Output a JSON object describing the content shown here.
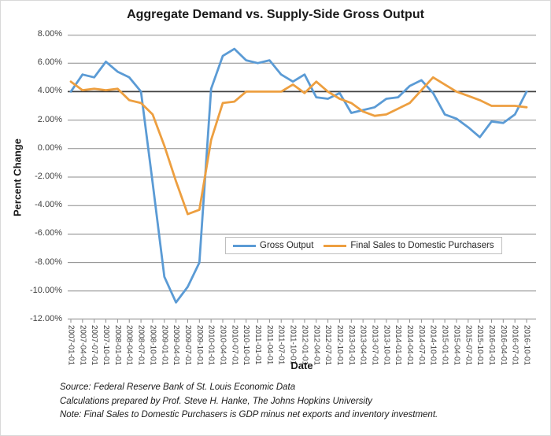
{
  "chart_data": {
    "type": "line",
    "title": "Aggregate Demand vs. Supply-Side Gross Output",
    "xlabel": "Date",
    "ylabel": "Percent Change",
    "ylim": [
      -12,
      8
    ],
    "ytick_step": 2,
    "ytick_labels": [
      "8.00%",
      "6.00%",
      "4.00%",
      "2.00%",
      "0.00%",
      "-2.00%",
      "-4.00%",
      "-6.00%",
      "-8.00%",
      "-10.00%",
      "-12.00%"
    ],
    "emphasized_gridline": 4,
    "grid": true,
    "xtick_rotation": 90,
    "legend_position": "inside-plot-lower-center",
    "categories": [
      "2007-01-01",
      "2007-04-01",
      "2007-07-01",
      "2007-10-01",
      "2008-01-01",
      "2008-04-01",
      "2008-07-01",
      "2008-10-01",
      "2009-01-01",
      "2009-04-01",
      "2009-07-01",
      "2009-10-01",
      "2010-01-01",
      "2010-04-01",
      "2010-07-01",
      "2010-10-01",
      "2011-01-01",
      "2011-04-01",
      "2011-07-01",
      "2011-10-01",
      "2012-01-01",
      "2012-04-01",
      "2012-07-01",
      "2012-10-01",
      "2013-01-01",
      "2013-04-01",
      "2013-07-01",
      "2013-10-01",
      "2014-01-01",
      "2014-04-01",
      "2014-07-01",
      "2014-10-01",
      "2015-01-01",
      "2015-04-01",
      "2015-07-01",
      "2015-10-01",
      "2016-01-01",
      "2016-04-01",
      "2016-07-01",
      "2016-10-01"
    ],
    "series": [
      {
        "id": "gross-output",
        "name": "Gross Output",
        "color": "#5B9BD5",
        "values": [
          4.0,
          5.2,
          5.0,
          6.1,
          5.4,
          5.0,
          4.0,
          -2.4,
          -9.0,
          -10.8,
          -9.7,
          -8.0,
          4.2,
          6.5,
          7.0,
          6.2,
          6.0,
          6.2,
          5.2,
          4.7,
          5.2,
          3.6,
          3.5,
          3.9,
          2.5,
          2.7,
          2.9,
          3.5,
          3.6,
          4.4,
          4.8,
          3.9,
          2.4,
          2.1,
          1.5,
          0.8,
          1.9,
          1.8,
          2.4,
          4.0
        ]
      },
      {
        "id": "final-sales",
        "name": "Final Sales to Domestic Purchasers",
        "color": "#ED9F40",
        "values": [
          4.7,
          4.1,
          4.2,
          4.1,
          4.2,
          3.4,
          3.2,
          2.4,
          0.2,
          -2.3,
          -4.6,
          -4.3,
          0.6,
          3.2,
          3.3,
          4.0,
          4.0,
          4.0,
          4.0,
          4.5,
          3.9,
          4.7,
          4.0,
          3.5,
          3.2,
          2.6,
          2.3,
          2.4,
          2.8,
          3.2,
          4.1,
          5.0,
          4.5,
          4.0,
          3.7,
          3.4,
          3.0,
          3.0,
          3.0,
          2.9
        ]
      }
    ]
  },
  "footnotes": [
    "Source: Federal Reserve Bank of St. Louis Economic Data",
    "Calculations prepared by Prof. Steve H. Hanke, The Johns Hopkins University",
    "Note: Final Sales to Domestic Purchasers is GDP minus net exports and inventory investment."
  ],
  "colors": {
    "gross_output": "#5B9BD5",
    "final_sales": "#ED9F40",
    "gridline": "#8C8C8C",
    "gridline_emphasis": "#404040",
    "tick_text": "#404040",
    "text_dark": "#1A1A1A",
    "legend_border": "#BFBFBF",
    "chart_border": "#D9D9D9",
    "background": "#FFFFFF"
  }
}
